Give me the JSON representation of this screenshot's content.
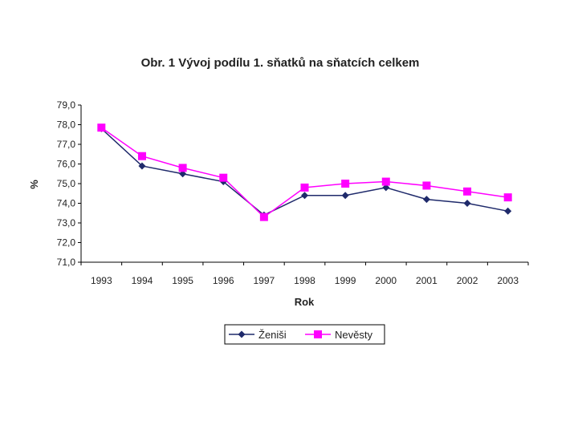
{
  "chart_data": {
    "type": "line",
    "title": "Obr. 1 Vývoj podílu 1. sňatků na sňatcích celkem",
    "xlabel": "Rok",
    "ylabel": "%",
    "categories": [
      "1993",
      "1994",
      "1995",
      "1996",
      "1997",
      "1998",
      "1999",
      "2000",
      "2001",
      "2002",
      "2003"
    ],
    "ylim": [
      71.0,
      79.0
    ],
    "yticks": [
      "71,0",
      "72,0",
      "73,0",
      "74,0",
      "75,0",
      "76,0",
      "77,0",
      "78,0",
      "79,0"
    ],
    "grid": false,
    "legend": "bottom",
    "series": [
      {
        "name": "Ženiši",
        "color": "#1f2a6b",
        "marker": "diamond",
        "values": [
          77.8,
          75.9,
          75.5,
          75.1,
          73.4,
          74.4,
          74.4,
          74.8,
          74.2,
          74.0,
          73.6
        ]
      },
      {
        "name": "Nevěsty",
        "color": "#ff00ff",
        "marker": "square",
        "values": [
          77.85,
          76.4,
          75.8,
          75.3,
          73.3,
          74.8,
          75.0,
          75.1,
          74.9,
          74.6,
          74.3
        ]
      }
    ]
  }
}
